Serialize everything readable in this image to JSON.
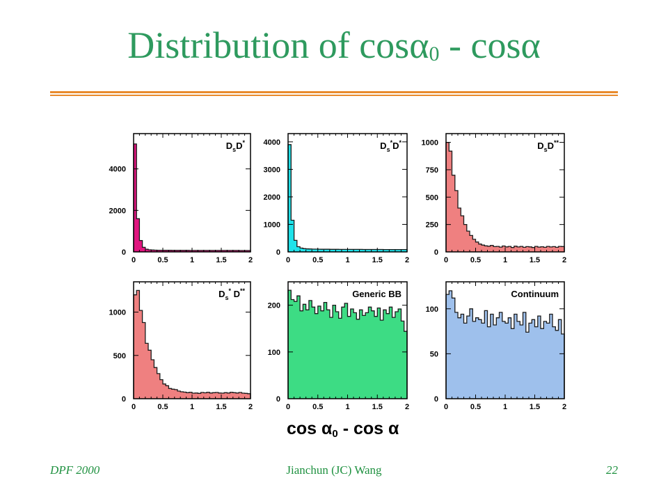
{
  "slide": {
    "title_main": "Distribution of cos",
    "title_alpha0": "α",
    "title_sub0": "0",
    "title_mid": " - cos",
    "title_alpha": "α",
    "footer_left": "DPF 2000",
    "footer_center": "Jianchun (JC) Wang",
    "footer_right": "22",
    "accent_color": "#2e9a5e",
    "rule_color": "#e88a2c"
  },
  "xaxis_title": {
    "pre": "cos ",
    "alpha0": "α",
    "sub": "0",
    "mid": " - cos ",
    "alpha": "α"
  },
  "chart_data": [
    {
      "type": "bar",
      "label": "DsD*",
      "label_parts": [
        {
          "t": "D"
        },
        {
          "t": "s",
          "pos": "sub"
        },
        {
          "t": "D"
        },
        {
          "t": "*",
          "pos": "sup"
        }
      ],
      "color": "#e0157f",
      "xlim": [
        0,
        2
      ],
      "ylim": [
        0,
        5700
      ],
      "xticks": [
        {
          "v": 0,
          "l": "0"
        },
        {
          "v": 0.5,
          "l": "0.5"
        },
        {
          "v": 1,
          "l": "1"
        },
        {
          "v": 1.5,
          "l": "1.5"
        },
        {
          "v": 2,
          "l": "2"
        }
      ],
      "yticks": [
        {
          "v": 0,
          "l": "0"
        },
        {
          "v": 2000,
          "l": "2000"
        },
        {
          "v": 4000,
          "l": "4000"
        }
      ],
      "values": [
        5200,
        1600,
        550,
        220,
        130,
        100,
        90,
        85,
        80,
        80,
        78,
        76,
        76,
        75,
        75,
        74,
        74,
        73,
        73,
        72,
        72,
        72,
        71,
        71,
        71,
        70,
        70,
        70,
        70,
        70,
        70,
        70,
        69,
        69,
        69,
        69,
        68,
        68,
        68,
        68
      ]
    },
    {
      "type": "bar",
      "label": "Ds*D*",
      "label_parts": [
        {
          "t": "D"
        },
        {
          "t": "s",
          "pos": "sub"
        },
        {
          "t": "*",
          "pos": "sup"
        },
        {
          "t": "D"
        },
        {
          "t": "*",
          "pos": "sup"
        }
      ],
      "color": "#1fe2ea",
      "xlim": [
        0,
        2
      ],
      "ylim": [
        0,
        4300
      ],
      "xticks": [
        {
          "v": 0,
          "l": "0"
        },
        {
          "v": 0.5,
          "l": "0.5"
        },
        {
          "v": 1,
          "l": "1"
        },
        {
          "v": 1.5,
          "l": "1.5"
        },
        {
          "v": 2,
          "l": "2"
        }
      ],
      "yticks": [
        {
          "v": 0,
          "l": "0"
        },
        {
          "v": 1000,
          "l": "1000"
        },
        {
          "v": 2000,
          "l": "2000"
        },
        {
          "v": 3000,
          "l": "3000"
        },
        {
          "v": 4000,
          "l": "4000"
        }
      ],
      "values": [
        3900,
        1150,
        420,
        190,
        140,
        120,
        110,
        105,
        100,
        100,
        98,
        96,
        95,
        95,
        94,
        93,
        93,
        92,
        92,
        91,
        91,
        90,
        90,
        90,
        90,
        89,
        89,
        89,
        88,
        88,
        88,
        88,
        87,
        87,
        87,
        87,
        86,
        86,
        86,
        86
      ]
    },
    {
      "type": "bar",
      "label": "DsD**",
      "label_parts": [
        {
          "t": "D"
        },
        {
          "t": "s",
          "pos": "sub"
        },
        {
          "t": "D"
        },
        {
          "t": "**",
          "pos": "sup"
        }
      ],
      "color": "#ef8080",
      "xlim": [
        0,
        2
      ],
      "ylim": [
        0,
        1080
      ],
      "xticks": [
        {
          "v": 0,
          "l": "0"
        },
        {
          "v": 0.5,
          "l": "0.5"
        },
        {
          "v": 1,
          "l": "1"
        },
        {
          "v": 1.5,
          "l": "1.5"
        },
        {
          "v": 2,
          "l": "2"
        }
      ],
      "yticks": [
        {
          "v": 0,
          "l": "0"
        },
        {
          "v": 250,
          "l": "250"
        },
        {
          "v": 500,
          "l": "500"
        },
        {
          "v": 750,
          "l": "750"
        },
        {
          "v": 1000,
          "l": "1000"
        }
      ],
      "values": [
        1000,
        920,
        700,
        560,
        400,
        330,
        250,
        190,
        150,
        115,
        90,
        72,
        62,
        55,
        52,
        60,
        48,
        50,
        44,
        54,
        46,
        50,
        40,
        52,
        45,
        50,
        42,
        48,
        46,
        40,
        50,
        44,
        47,
        42,
        50,
        45,
        48,
        42,
        50,
        49
      ]
    },
    {
      "type": "bar",
      "label": "Ds*D**",
      "label_parts": [
        {
          "t": "D"
        },
        {
          "t": "s",
          "pos": "sub"
        },
        {
          "t": "*",
          "pos": "sup"
        },
        {
          "t": " D"
        },
        {
          "t": "**",
          "pos": "sup"
        }
      ],
      "color": "#ef8080",
      "xlim": [
        0,
        2
      ],
      "ylim": [
        0,
        1350
      ],
      "xticks": [
        {
          "v": 0,
          "l": "0"
        },
        {
          "v": 0.5,
          "l": "0.5"
        },
        {
          "v": 1,
          "l": "1"
        },
        {
          "v": 1.5,
          "l": "1.5"
        },
        {
          "v": 2,
          "l": "2"
        }
      ],
      "yticks": [
        {
          "v": 0,
          "l": "0"
        },
        {
          "v": 500,
          "l": "500"
        },
        {
          "v": 1000,
          "l": "1000"
        }
      ],
      "values": [
        1200,
        1250,
        1020,
        880,
        640,
        560,
        450,
        360,
        290,
        220,
        170,
        150,
        118,
        110,
        105,
        88,
        80,
        76,
        70,
        74,
        64,
        66,
        62,
        72,
        68,
        74,
        66,
        70,
        72,
        66,
        64,
        70,
        66,
        74,
        70,
        66,
        72,
        64,
        62,
        58
      ]
    },
    {
      "type": "bar",
      "label": "Generic BB",
      "label_parts": [
        {
          "t": "Generic BB"
        }
      ],
      "color": "#3ddc84",
      "xlim": [
        0,
        2
      ],
      "ylim": [
        0,
        250
      ],
      "xticks": [
        {
          "v": 0,
          "l": "0"
        },
        {
          "v": 0.5,
          "l": "0.5"
        },
        {
          "v": 1,
          "l": "1"
        },
        {
          "v": 1.5,
          "l": "1.5"
        },
        {
          "v": 2,
          "l": "2"
        }
      ],
      "yticks": [
        {
          "v": 0,
          "l": "0"
        },
        {
          "v": 100,
          "l": "100"
        },
        {
          "v": 200,
          "l": "200"
        }
      ],
      "values": [
        232,
        212,
        208,
        220,
        188,
        202,
        190,
        210,
        196,
        182,
        198,
        188,
        206,
        190,
        174,
        200,
        186,
        172,
        196,
        204,
        176,
        192,
        184,
        170,
        190,
        178,
        184,
        196,
        188,
        176,
        194,
        168,
        190,
        182,
        196,
        174,
        186,
        192,
        166,
        144
      ]
    },
    {
      "type": "bar",
      "label": "Continuum",
      "label_parts": [
        {
          "t": "Continuum"
        }
      ],
      "color": "#9ec0ec",
      "xlim": [
        0,
        2
      ],
      "ylim": [
        0,
        130
      ],
      "xticks": [
        {
          "v": 0,
          "l": "0"
        },
        {
          "v": 0.5,
          "l": "0.5"
        },
        {
          "v": 1,
          "l": "1"
        },
        {
          "v": 1.5,
          "l": "1.5"
        },
        {
          "v": 2,
          "l": "2"
        }
      ],
      "yticks": [
        {
          "v": 0,
          "l": "0"
        },
        {
          "v": 50,
          "l": "50"
        },
        {
          "v": 100,
          "l": "100"
        }
      ],
      "values": [
        116,
        120,
        112,
        96,
        90,
        94,
        84,
        92,
        100,
        86,
        90,
        88,
        84,
        98,
        80,
        94,
        82,
        90,
        96,
        86,
        84,
        90,
        78,
        94,
        86,
        82,
        96,
        74,
        84,
        88,
        80,
        92,
        78,
        86,
        84,
        94,
        80,
        76,
        88,
        72
      ]
    }
  ]
}
